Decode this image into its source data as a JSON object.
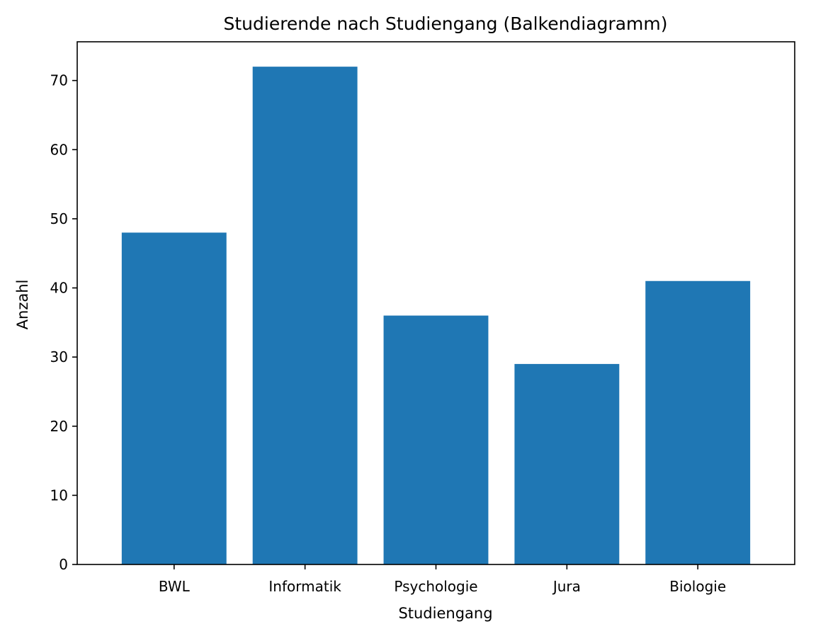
{
  "chart_data": {
    "type": "bar",
    "title": "Studierende nach Studiengang (Balkendiagramm)",
    "xlabel": "Studiengang",
    "ylabel": "Anzahl",
    "categories": [
      "BWL",
      "Informatik",
      "Psychologie",
      "Jura",
      "Biologie"
    ],
    "values": [
      48,
      72,
      36,
      29,
      41
    ],
    "ylim": [
      0,
      75.6
    ],
    "yticks": [
      0,
      10,
      20,
      30,
      40,
      50,
      60,
      70
    ],
    "grid": false,
    "legend": "none",
    "bar_color": "#1f77b4"
  }
}
